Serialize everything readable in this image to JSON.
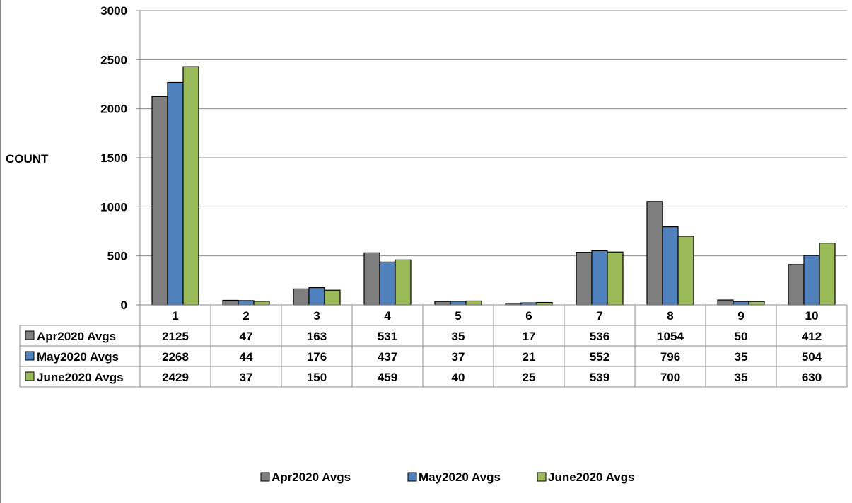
{
  "chart_data": {
    "type": "bar",
    "categories": [
      "1",
      "2",
      "3",
      "4",
      "5",
      "6",
      "7",
      "8",
      "9",
      "10"
    ],
    "series": [
      {
        "name": "Apr2020 Avgs",
        "color": "#7f7f7f",
        "values": [
          2125,
          47,
          163,
          531,
          35,
          17,
          536,
          1054,
          50,
          412
        ]
      },
      {
        "name": "May2020 Avgs",
        "color": "#4f81bd",
        "values": [
          2268,
          44,
          176,
          437,
          37,
          21,
          552,
          796,
          35,
          504
        ]
      },
      {
        "name": "June2020 Avgs",
        "color": "#9bbb59",
        "values": [
          2429,
          37,
          150,
          459,
          40,
          25,
          539,
          700,
          35,
          630
        ]
      }
    ],
    "title": "",
    "xlabel": "",
    "ylabel": "COUNT",
    "ylim": [
      0,
      3000
    ],
    "yticks": [
      "0",
      "500",
      "1000",
      "1500",
      "2000",
      "2500",
      "3000"
    ],
    "grid": true,
    "data_table": true,
    "legend": "bottom"
  }
}
